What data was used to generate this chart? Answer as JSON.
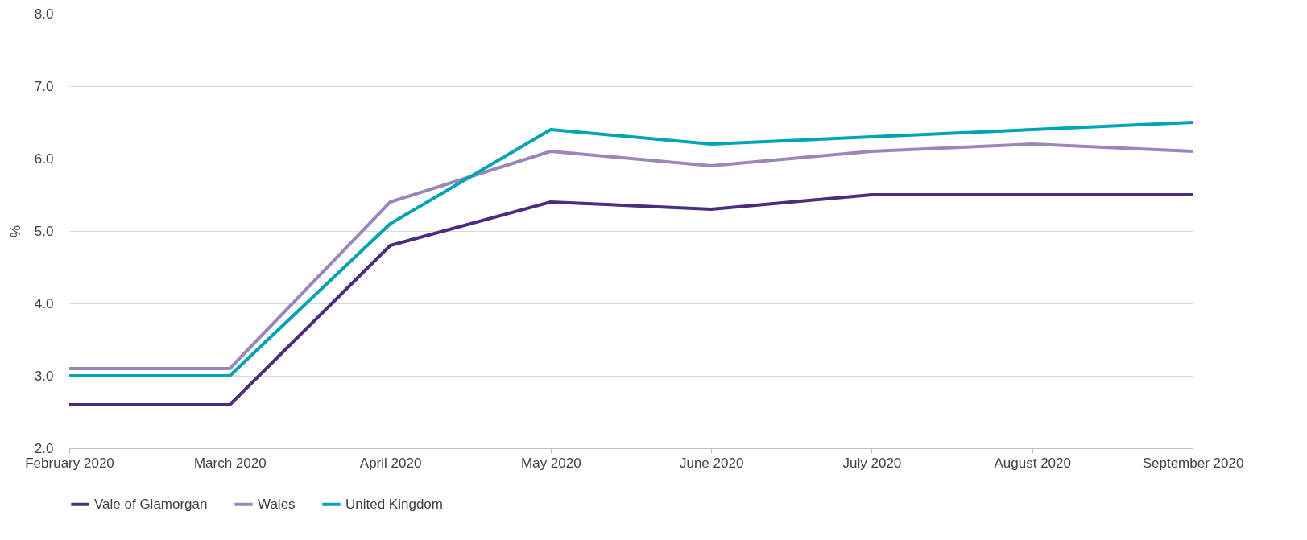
{
  "chart_data": {
    "type": "line",
    "ylabel": "%",
    "categories": [
      "February 2020",
      "March 2020",
      "April 2020",
      "May 2020",
      "June 2020",
      "July 2020",
      "August 2020",
      "September 2020"
    ],
    "series": [
      {
        "name": "Vale of Glamorgan",
        "color": "#4b2c82",
        "values": [
          2.6,
          2.6,
          4.8,
          5.4,
          5.3,
          5.5,
          5.5,
          5.5
        ]
      },
      {
        "name": "Wales",
        "color": "#9b86bb",
        "values": [
          3.1,
          3.1,
          5.4,
          6.1,
          5.9,
          6.1,
          6.2,
          6.1
        ]
      },
      {
        "name": "United Kingdom",
        "color": "#00a5b5",
        "values": [
          3.0,
          3.0,
          5.1,
          6.4,
          6.2,
          6.3,
          6.4,
          6.5
        ]
      }
    ],
    "ylim": [
      2,
      8
    ],
    "yticks": [
      {
        "value": 2,
        "label": "2.0"
      },
      {
        "value": 3,
        "label": "3.0"
      },
      {
        "value": 4,
        "label": "4.0"
      },
      {
        "value": 5,
        "label": "5.0"
      },
      {
        "value": 6,
        "label": "6.0"
      },
      {
        "value": 7,
        "label": "7.0"
      },
      {
        "value": 8,
        "label": "8.0"
      }
    ],
    "grid": "y",
    "legend": "bottom",
    "marker": "none",
    "line_style": "solid"
  }
}
